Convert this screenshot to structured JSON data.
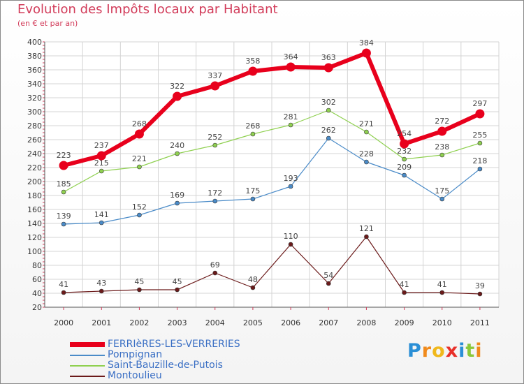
{
  "chart_data": {
    "type": "line",
    "title": "Evolution des Impôts locaux par Habitant",
    "subtitle": "(en € et par an)",
    "x": [
      "2000",
      "2001",
      "2002",
      "2003",
      "2004",
      "2005",
      "2006",
      "2007",
      "2008",
      "2009",
      "2010",
      "2011"
    ],
    "ylim": [
      20,
      400
    ],
    "yticks": [
      20,
      40,
      60,
      80,
      100,
      120,
      140,
      160,
      180,
      200,
      220,
      240,
      260,
      280,
      300,
      320,
      340,
      360,
      380,
      400
    ],
    "grid": true,
    "legend_position": "bottom-left",
    "series": [
      {
        "name": "FERRIèRES-LES-VERRERIES",
        "color": "#e8001c",
        "values": [
          223,
          237,
          268,
          322,
          337,
          358,
          364,
          363,
          384,
          254,
          272,
          297
        ]
      },
      {
        "name": "Pompignan",
        "color": "#4a8bc8",
        "values": [
          139,
          141,
          152,
          169,
          172,
          175,
          193,
          262,
          228,
          209,
          175,
          218
        ]
      },
      {
        "name": "Saint-Bauzille-de-Putois",
        "color": "#8fd050",
        "values": [
          185,
          215,
          221,
          240,
          252,
          268,
          281,
          302,
          271,
          232,
          238,
          255
        ]
      },
      {
        "name": "Montoulieu",
        "color": "#6b1a1a",
        "values": [
          41,
          43,
          45,
          45,
          69,
          48,
          110,
          54,
          121,
          41,
          41,
          39
        ]
      }
    ]
  },
  "logo": {
    "letters": [
      "P",
      "r",
      "o",
      "x",
      "i",
      "t",
      "i"
    ],
    "colors": [
      "#2a8fd6",
      "#f08a1c",
      "#f0b81c",
      "#e8302a",
      "#2a8fd6",
      "#8bc83a",
      "#f08a1c"
    ]
  }
}
